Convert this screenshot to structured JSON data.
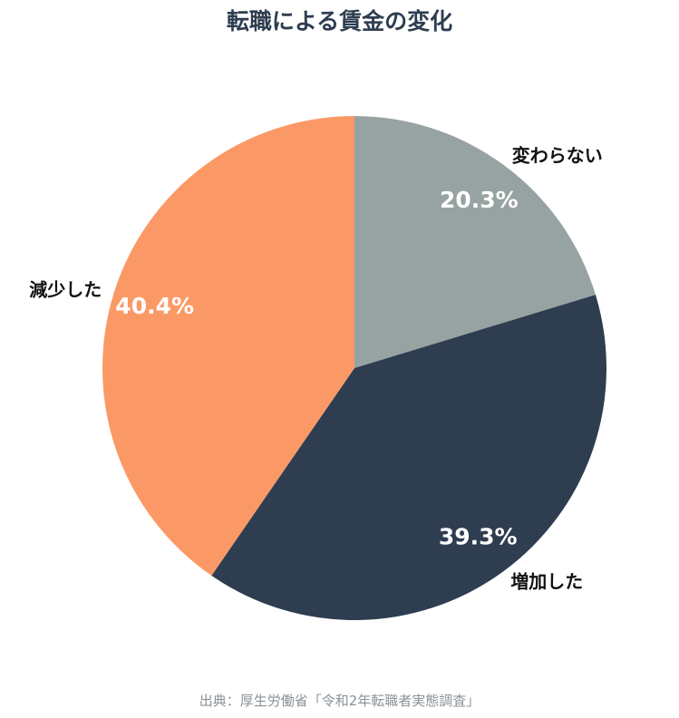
{
  "chart_data": {
    "type": "pie",
    "title": "転職による賃金の変化",
    "categories": [
      "変わらない",
      "増加した",
      "減少した"
    ],
    "values": [
      20.3,
      39.3,
      40.4
    ],
    "value_labels": [
      "20.3%",
      "39.3%",
      "40.4%"
    ],
    "colors": [
      "#97a3a2",
      "#2e3d50",
      "#fb9966"
    ],
    "start_angle": "12 o'clock",
    "direction": "clockwise",
    "source": "出典：厚生労働省「令和2年転職者実態調査」"
  }
}
